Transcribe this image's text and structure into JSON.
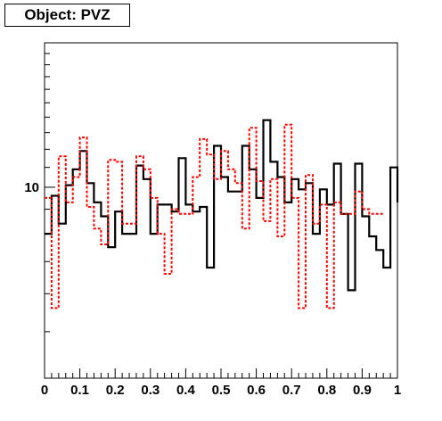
{
  "title": "Object: PVZ",
  "chart_data": {
    "type": "step",
    "title": "Object: PVZ",
    "xlabel": "",
    "ylabel": "",
    "xlim": [
      0,
      1
    ],
    "ylim": [
      4,
      20
    ],
    "yscale": "log",
    "x_ticks": [
      "0",
      "0.1",
      "0.2",
      "0.3",
      "0.4",
      "0.5",
      "0.6",
      "0.7",
      "0.8",
      "0.9",
      "1"
    ],
    "y_ticks": [
      "10"
    ],
    "grid": false,
    "bin_width": 0.02,
    "series": [
      {
        "color": "#000000",
        "style": "solid",
        "values": [
          8,
          9.6,
          8.4,
          10.1,
          10.9,
          11.9,
          10.2,
          9.3,
          8.7,
          7.5,
          8.9,
          8,
          8,
          11.1,
          10.4,
          8,
          9.2,
          9.2,
          8.9,
          11.5,
          9.2,
          8.9,
          9.1,
          6.8,
          12.2,
          10.5,
          9.8,
          9.8,
          12.2,
          10.9,
          9.5,
          13.8,
          11.3,
          10.5,
          9.3,
          10.4,
          9.9,
          10.2,
          8,
          9.9,
          9.2,
          11.2,
          8.8,
          6.1,
          11.2,
          8.7,
          7.9,
          7.4,
          6.8,
          11,
          9.3
        ]
      },
      {
        "color": "#ff0000",
        "style": "dashed",
        "values": [
          9.5,
          5.6,
          11.6,
          9.3,
          10.5,
          12.7,
          9.1,
          8.2,
          7.6,
          11.4,
          11.3,
          8.4,
          8.4,
          11.6,
          10.9,
          9.5,
          8,
          6.6,
          9,
          8.8,
          8.8,
          10.5,
          12.6,
          11.7,
          10.4,
          11.9,
          10.9,
          10.2,
          8.2,
          13.3,
          10.3,
          8.5,
          10.4,
          7.9,
          13.5,
          9.5,
          5.6,
          10.6,
          8.4,
          9.2,
          5.6,
          9.3,
          8.8,
          8.8,
          9.8,
          9,
          8.8,
          8.8
        ]
      }
    ]
  }
}
